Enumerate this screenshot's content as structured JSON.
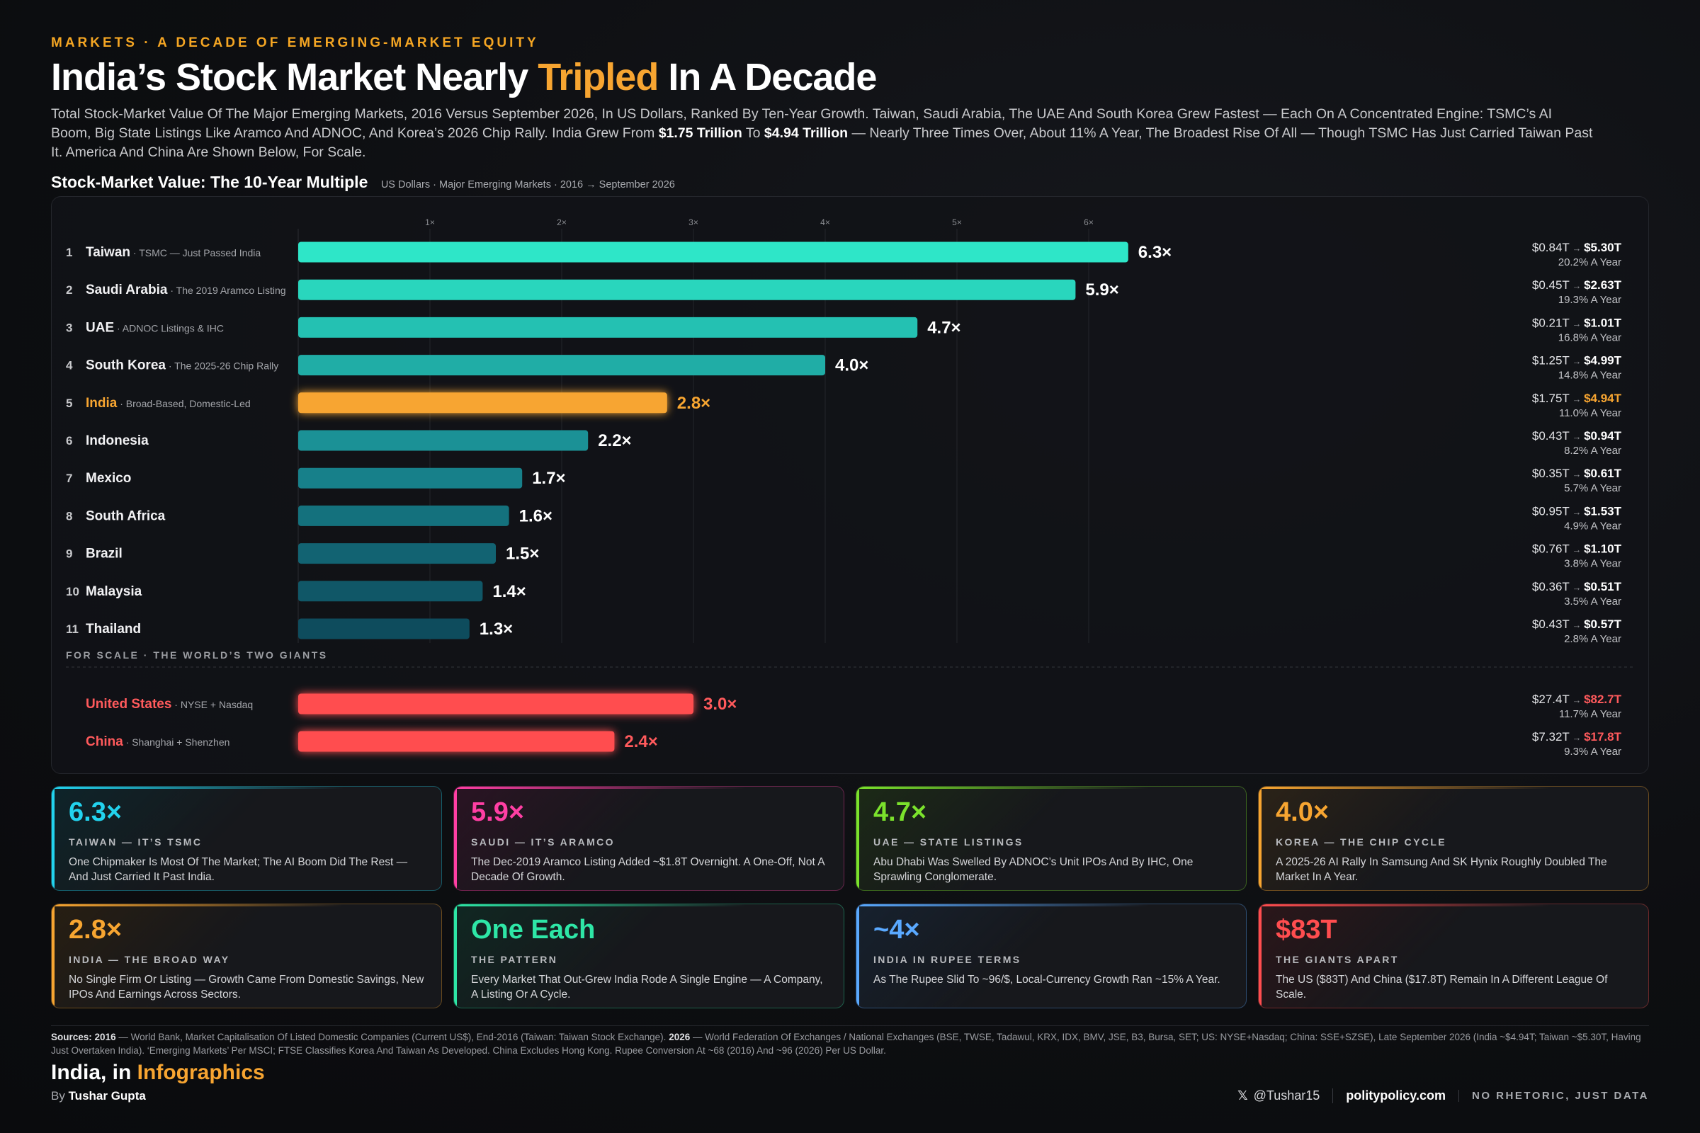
{
  "header": {
    "kicker": "MARKETS · A DECADE OF EMERGING-MARKET EQUITY",
    "title_pre": "India’s Stock Market Nearly ",
    "title_hl": "Tripled",
    "title_post": " In A Decade",
    "subtitle_1": "Total Stock-Market Value Of The Major Emerging Markets, 2016 Versus September 2026, In US Dollars, Ranked By Ten-Year Growth. Taiwan, Saudi Arabia, The UAE And South Korea Grew Fastest — Each On A Concentrated Engine: TSMC’s AI Boom, Big State Listings Like Aramco And ADNOC, And Korea’s 2026 Chip Rally. India Grew From ",
    "subtitle_b1": "$1.75 Trillion",
    "subtitle_2": " To ",
    "subtitle_b2": "$4.94 Trillion",
    "subtitle_3": " — Nearly Three Times Over, About 11% A Year, The Broadest Rise Of All — Though TSMC Has Just Carried Taiwan Past It. America And China Are Shown Below, For Scale."
  },
  "chart_head": {
    "title": "Stock-Market Value: The 10-Year Multiple",
    "sub": "US Dollars · Major Emerging Markets · 2016 → September 2026"
  },
  "chart_data": {
    "type": "bar",
    "orientation": "horizontal",
    "x_ticks": [
      1,
      2,
      3,
      4,
      5,
      6
    ],
    "x_tick_labels": [
      "1×",
      "2×",
      "3×",
      "4×",
      "5×",
      "6×"
    ],
    "xlim": [
      0,
      6.3
    ],
    "grid": true,
    "scale_label": "FOR SCALE · THE WORLD’S TWO GIANTS",
    "rows": [
      {
        "rank": "1",
        "name": "Taiwan",
        "note": " · TSMC — Just Passed India",
        "multiple": 6.3,
        "label": "6.3×",
        "from": "$0.84T",
        "to": "$5.30T",
        "cagr": "20.2% A Year",
        "color": "#2ee6c8"
      },
      {
        "rank": "2",
        "name": "Saudi Arabia",
        "note": " · The 2019 Aramco Listing",
        "multiple": 5.9,
        "label": "5.9×",
        "from": "$0.45T",
        "to": "$2.63T",
        "cagr": "19.3% A Year",
        "color": "#29d6bd"
      },
      {
        "rank": "3",
        "name": "UAE",
        "note": " · ADNOC Listings & IHC",
        "multiple": 4.7,
        "label": "4.7×",
        "from": "$0.21T",
        "to": "$1.01T",
        "cagr": "16.8% A Year",
        "color": "#24c1b2"
      },
      {
        "rank": "4",
        "name": "South Korea",
        "note": " · The 2025-26 Chip Rally",
        "multiple": 4.0,
        "label": "4.0×",
        "from": "$1.25T",
        "to": "$4.99T",
        "cagr": "14.8% A Year",
        "color": "#20ada6"
      },
      {
        "rank": "5",
        "name": "India",
        "note": " · Broad-Based, Domestic-Led",
        "multiple": 2.8,
        "label": "2.8×",
        "from": "$1.75T",
        "to": "$4.94T",
        "cagr": "11.0% A Year",
        "color": "#f7a531",
        "highlight": true
      },
      {
        "rank": "6",
        "name": "Indonesia",
        "note": "",
        "multiple": 2.2,
        "label": "2.2×",
        "from": "$0.43T",
        "to": "$0.94T",
        "cagr": "8.2% A Year",
        "color": "#1b9196"
      },
      {
        "rank": "7",
        "name": "Mexico",
        "note": "",
        "multiple": 1.7,
        "label": "1.7×",
        "from": "$0.35T",
        "to": "$0.61T",
        "cagr": "5.7% A Year",
        "color": "#17808a"
      },
      {
        "rank": "8",
        "name": "South Africa",
        "note": "",
        "multiple": 1.6,
        "label": "1.6×",
        "from": "$0.95T",
        "to": "$1.53T",
        "cagr": "4.9% A Year",
        "color": "#14717d"
      },
      {
        "rank": "9",
        "name": "Brazil",
        "note": "",
        "multiple": 1.5,
        "label": "1.5×",
        "from": "$0.76T",
        "to": "$1.10T",
        "cagr": "3.8% A Year",
        "color": "#126372"
      },
      {
        "rank": "10",
        "name": "Malaysia",
        "note": "",
        "multiple": 1.4,
        "label": "1.4×",
        "from": "$0.36T",
        "to": "$0.51T",
        "cagr": "3.5% A Year",
        "color": "#105767"
      },
      {
        "rank": "11",
        "name": "Thailand",
        "note": "",
        "multiple": 1.3,
        "label": "1.3×",
        "from": "$0.43T",
        "to": "$0.57T",
        "cagr": "2.8% A Year",
        "color": "#0e4c5d"
      }
    ],
    "giants": [
      {
        "name": "United States",
        "note": " · NYSE + Nasdaq",
        "multiple": 3.0,
        "label": "3.0×",
        "from": "$27.4T",
        "to": "$82.7T",
        "cagr": "11.7% A Year",
        "color": "#ff4d4f"
      },
      {
        "name": "China",
        "note": " · Shanghai + Shenzhen",
        "multiple": 2.4,
        "label": "2.4×",
        "from": "$7.32T",
        "to": "$17.8T",
        "cagr": "9.3% A Year",
        "color": "#ff4d4f"
      }
    ]
  },
  "cards": [
    {
      "big": "6.3×",
      "label": "TAIWAN — IT’S TSMC",
      "text": "One Chipmaker Is Most Of The Market; The AI Boom Did The Rest — And Just Carried It Past India.",
      "accent": "#22d3ee"
    },
    {
      "big": "5.9×",
      "label": "SAUDI — IT’S ARAMCO",
      "text": "The Dec-2019 Aramco Listing Added ~$1.8T Overnight. A One-Off, Not A Decade Of Growth.",
      "accent": "#ff3fa4"
    },
    {
      "big": "4.7×",
      "label": "UAE — STATE LISTINGS",
      "text": "Abu Dhabi Was Swelled By ADNOC’s Unit IPOs And By IHC, One Sprawling Conglomerate.",
      "accent": "#7be22c"
    },
    {
      "big": "4.0×",
      "label": "KOREA — THE CHIP CYCLE",
      "text": "A 2025-26 AI Rally In Samsung And SK Hynix Roughly Doubled The Market In A Year.",
      "accent": "#f7a531"
    },
    {
      "big": "2.8×",
      "label": "INDIA — THE BROAD WAY",
      "text": "No Single Firm Or Listing — Growth Came From Domestic Savings, New IPOs And Earnings Across Sectors.",
      "accent": "#f7a531"
    },
    {
      "big": "One Each",
      "label": "THE PATTERN",
      "text": "Every Market That Out-Grew India Rode A Single Engine — A Company, A Listing Or A Cycle.",
      "accent": "#2ee6a6"
    },
    {
      "big": "~4×",
      "label": "INDIA IN RUPEE TERMS",
      "text": "As The Rupee Slid To ~96/$, Local-Currency Growth Ran ~15% A Year.",
      "accent": "#5aa9ff"
    },
    {
      "big": "$83T",
      "label": "THE GIANTS APART",
      "text": "The US ($83T) And China ($17.8T) Remain In A Different League Of Scale.",
      "accent": "#ff4d4f"
    }
  ],
  "sources": {
    "lead": "Sources:",
    "y1": "2016",
    "t1": " — World Bank, Market Capitalisation Of Listed Domestic Companies (Current US$), End-2016 (Taiwan: Taiwan Stock Exchange). ",
    "y2": "2026",
    "t2": " — World Federation Of Exchanges / National Exchanges (BSE, TWSE, Tadawul, KRX, IDX, BMV, JSE, B3, Bursa, SET; US: NYSE+Nasdaq; China: SSE+SZSE), Late September 2026 (India ~$4.94T; Taiwan ~$5.30T, Having Just Overtaken India). ‘Emerging Markets’ Per MSCI; FTSE Classifies Korea And Taiwan As Developed. China Excludes Hong Kong. Rupee Conversion At ~68 (2016) And ~96 (2026) Per US Dollar."
  },
  "brand": {
    "pre": "India, in ",
    "hl": "Infographics"
  },
  "byline": {
    "pre": "By ",
    "name": "Tushar Gupta"
  },
  "footer": {
    "handle": "@Tushar15",
    "site": "politypolicy.com",
    "motto": "NO RHETORIC, JUST DATA",
    "x_icon": "x-logo-icon"
  }
}
